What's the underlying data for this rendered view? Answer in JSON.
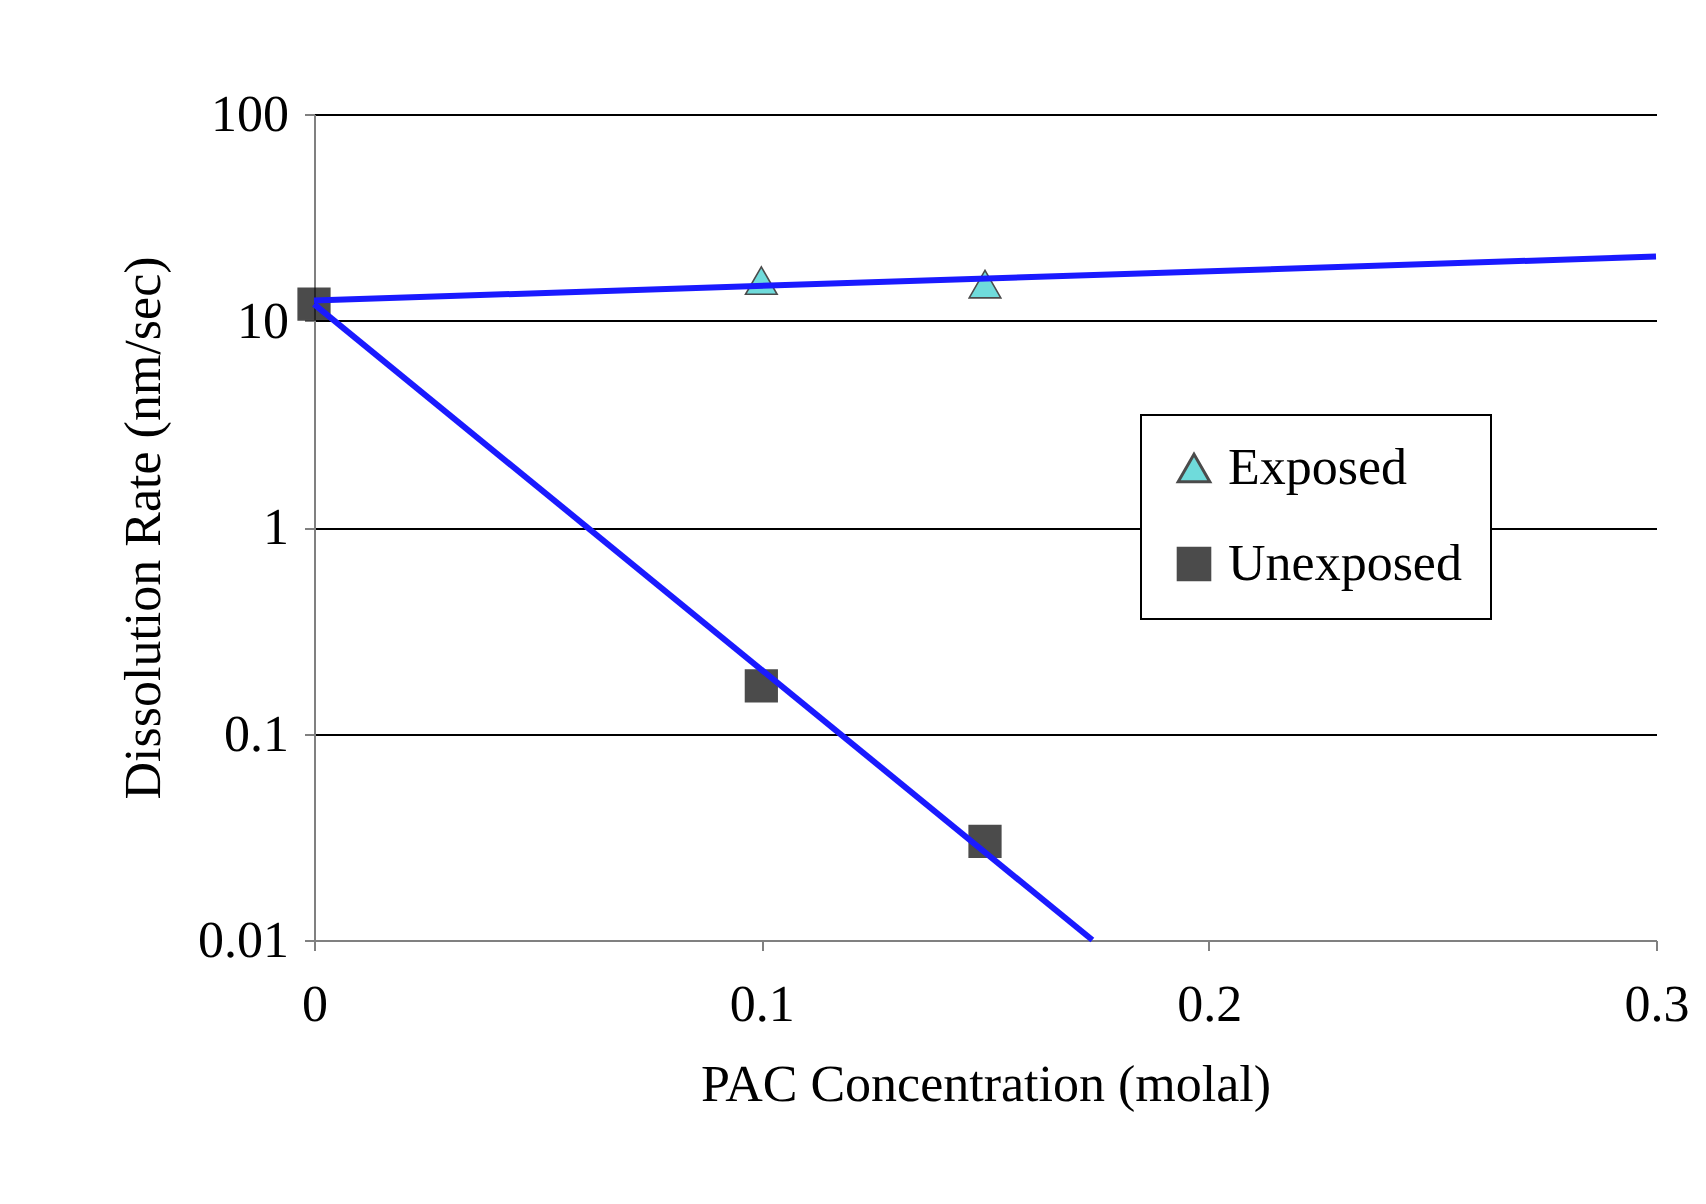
{
  "chart_data": {
    "type": "scatter",
    "xlabel": "PAC Concentration (molal)",
    "ylabel": "Dissolution Rate (nm/sec)",
    "log": "y",
    "xlim": [
      0,
      0.3
    ],
    "xticks": [
      0,
      0.1,
      0.2,
      0.3
    ],
    "ylim": [
      0.01,
      100
    ],
    "yticks": [
      0.01,
      0.1,
      1,
      10,
      100
    ],
    "grid": "y",
    "legend": "right",
    "series": [
      {
        "name": "Exposed",
        "type": "scatter",
        "marker": "triangle",
        "color": "#33cccc",
        "x": [
          0.1,
          0.15
        ],
        "values": [
          15.6,
          15
        ]
      },
      {
        "name": "Unexposed",
        "type": "scatter",
        "marker": "square",
        "color": "#000000",
        "x": [
          0,
          0.1,
          0.15
        ],
        "values": [
          12,
          0.17,
          0.03
        ]
      },
      {
        "type": "line",
        "color": "#1a1aff",
        "x": [
          0,
          0.3
        ],
        "values": [
          12.5,
          20.4
        ]
      },
      {
        "type": "line",
        "color": "#1a1aff",
        "x": [
          0,
          0.174
        ],
        "values": [
          12,
          0.01
        ]
      }
    ]
  }
}
